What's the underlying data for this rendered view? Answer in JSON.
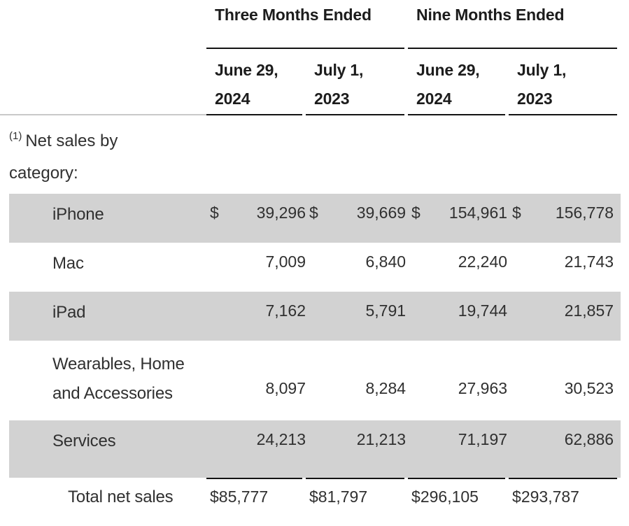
{
  "colors": {
    "page_bg": "#ffffff",
    "shaded_row_bg": "#d2d2d2",
    "body_text": "#303030",
    "header_text": "#1c1c1c",
    "rule_dark": "#131313",
    "rule_light": "#c9c9c9"
  },
  "table": {
    "col_groups": [
      {
        "label": "Three Months Ended",
        "columns": [
          {
            "line1": "June 29,",
            "line2": "2024"
          },
          {
            "line1": "July 1,",
            "line2": "2023"
          }
        ]
      },
      {
        "label": "Nine Months Ended",
        "columns": [
          {
            "line1": "June 29,",
            "line2": "2024"
          },
          {
            "line1": "July 1,",
            "line2": "2023"
          }
        ]
      }
    ],
    "note": {
      "sup": "(1)",
      "line1": "Net sales by",
      "line2": "category:"
    },
    "currency_symbol": "$",
    "rows": [
      {
        "label": "iPhone",
        "dollar": "$",
        "values": [
          "39,296",
          "39,669",
          "154,961",
          "156,778"
        ]
      },
      {
        "label": "Mac",
        "dollar": "",
        "values": [
          "7,009",
          "6,840",
          "22,240",
          "21,743"
        ]
      },
      {
        "label": "iPad",
        "dollar": "",
        "values": [
          "7,162",
          "5,791",
          "19,744",
          "21,857"
        ]
      },
      {
        "label_line1": "Wearables, Home",
        "label_line2": "and Accessories",
        "dollar": "",
        "values": [
          "8,097",
          "8,284",
          "27,963",
          "30,523"
        ]
      },
      {
        "label": "Services",
        "dollar": "",
        "values": [
          "24,213",
          "21,213",
          "71,197",
          "62,886"
        ]
      }
    ],
    "total": {
      "label": "Total net sales",
      "values": [
        "$85,777",
        "$81,797",
        "$296,105",
        "$293,787"
      ]
    }
  }
}
